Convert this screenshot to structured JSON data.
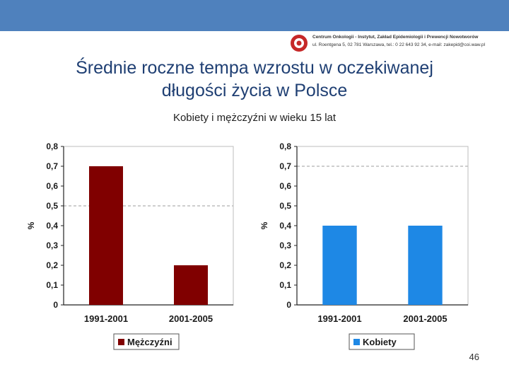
{
  "header": {
    "logo_line1": "Centrum Onkologii - Instytut, Zakład Epidemiologii i Prewencji Nowotworów",
    "logo_line2": "ul. Roentgena 5, 02 781 Warszawa, tel.: 0 22 643 92 34, e-mail: zakepid@coi.waw.pl"
  },
  "title_line1": "Średnie roczne tempa wzrostu w oczekiwanej",
  "title_line2": "długości życia w Polsce",
  "subtitle": "Kobiety i mężczyźni w wieku 15 lat",
  "page_number": "46",
  "colors": {
    "men": "#800000",
    "women": "#1e88e5",
    "band": "#4f81bd"
  },
  "chart_data": [
    {
      "type": "bar",
      "categories": [
        "1991-2001",
        "2001-2005"
      ],
      "series": [
        {
          "name": "Mężczyźni",
          "values": [
            0.7,
            0.2
          ],
          "color": "#800000"
        }
      ],
      "ylabel": "%",
      "ylim": [
        0,
        0.8
      ],
      "yticks": [
        "0",
        "0,1",
        "0,2",
        "0,3",
        "0,4",
        "0,5",
        "0,6",
        "0,7",
        "0,8"
      ],
      "reference_lines": [
        0.5
      ],
      "legend": "bottom"
    },
    {
      "type": "bar",
      "categories": [
        "1991-2001",
        "2001-2005"
      ],
      "series": [
        {
          "name": "Kobiety",
          "values": [
            0.4,
            0.4
          ],
          "color": "#1e88e5"
        }
      ],
      "ylabel": "%",
      "ylim": [
        0,
        0.8
      ],
      "yticks": [
        "0",
        "0,1",
        "0,2",
        "0,3",
        "0,4",
        "0,5",
        "0,6",
        "0,7",
        "0,8"
      ],
      "reference_lines": [
        0.7
      ],
      "legend": "bottom"
    }
  ]
}
